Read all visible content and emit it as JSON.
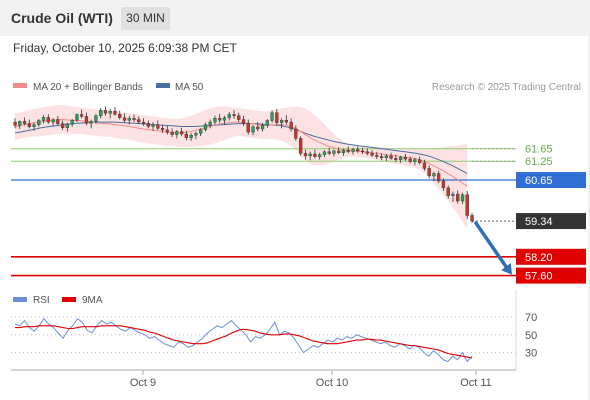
{
  "header": {
    "title": "Crude Oil (WTI)",
    "timeframe": "30 MIN"
  },
  "timestamp": "Friday, October 10, 2025 6:09:38 PM CET",
  "legend": {
    "ma20_label": "MA 20 + Bollinger Bands",
    "ma50_label": "MA 50",
    "copyright": "Research © 2025 Trading Central",
    "rsi_label": "RSI",
    "ma9_label": "9MA"
  },
  "colors": {
    "bull": "#26a65b",
    "bear": "#c0392b",
    "ma20": "#f08a8a",
    "ma50": "#4a6fa5",
    "bollinger": "#fbd5d5",
    "level_blue": "#2f6fd6",
    "level_red": "#e00000",
    "level_green": "#8fcf6f",
    "current": "#333333",
    "arrow": "#2e6fb5",
    "rsi": "#6b8fd6",
    "rsi_ma": "#e00000"
  },
  "chart_data": [
    {
      "type": "candlestick",
      "title": "Crude Oil (WTI)",
      "timeframe": "30 MIN",
      "ylim": [
        57.3,
        63.3
      ],
      "x_tick_labels": [
        "Oct 9",
        "Oct 10",
        "Oct 11"
      ],
      "levels": [
        {
          "value": 61.65,
          "label": "61.65",
          "style": "green-line"
        },
        {
          "value": 61.25,
          "label": "61.25",
          "style": "green-line"
        },
        {
          "value": 60.65,
          "label": "60.65",
          "style": "blue-badge"
        },
        {
          "value": 59.34,
          "label": "59.34",
          "style": "current-price-badge"
        },
        {
          "value": 58.2,
          "label": "58.20",
          "style": "red-badge"
        },
        {
          "value": 57.6,
          "label": "57.60",
          "style": "red-badge"
        }
      ],
      "candles": [
        [
          62.5,
          62.62,
          62.3,
          62.4
        ],
        [
          62.4,
          62.55,
          62.28,
          62.52
        ],
        [
          62.52,
          62.65,
          62.4,
          62.45
        ],
        [
          62.45,
          62.58,
          62.3,
          62.35
        ],
        [
          62.35,
          62.48,
          62.22,
          62.42
        ],
        [
          62.42,
          62.6,
          62.35,
          62.55
        ],
        [
          62.55,
          62.72,
          62.45,
          62.65
        ],
        [
          62.65,
          62.75,
          62.45,
          62.5
        ],
        [
          62.5,
          62.62,
          62.38,
          62.58
        ],
        [
          62.58,
          62.7,
          62.4,
          62.45
        ],
        [
          62.45,
          62.55,
          62.25,
          62.32
        ],
        [
          62.32,
          62.48,
          62.2,
          62.44
        ],
        [
          62.44,
          62.6,
          62.35,
          62.56
        ],
        [
          62.56,
          62.78,
          62.5,
          62.74
        ],
        [
          62.74,
          62.9,
          62.62,
          62.68
        ],
        [
          62.68,
          62.8,
          62.4,
          62.46
        ],
        [
          62.46,
          62.58,
          62.3,
          62.52
        ],
        [
          62.52,
          62.75,
          62.45,
          62.7
        ],
        [
          62.7,
          62.95,
          62.62,
          62.88
        ],
        [
          62.88,
          63.0,
          62.7,
          62.78
        ],
        [
          62.78,
          62.92,
          62.62,
          62.85
        ],
        [
          62.85,
          62.98,
          62.7,
          62.75
        ],
        [
          62.75,
          62.86,
          62.58,
          62.64
        ],
        [
          62.64,
          62.78,
          62.48,
          62.56
        ],
        [
          62.56,
          62.7,
          62.42,
          62.62
        ],
        [
          62.62,
          62.74,
          62.5,
          62.58
        ],
        [
          62.58,
          62.68,
          62.44,
          62.5
        ],
        [
          62.5,
          62.62,
          62.38,
          62.46
        ],
        [
          62.46,
          62.55,
          62.3,
          62.36
        ],
        [
          62.36,
          62.5,
          62.22,
          62.42
        ],
        [
          62.42,
          62.55,
          62.25,
          62.3
        ],
        [
          62.3,
          62.42,
          62.15,
          62.25
        ],
        [
          62.25,
          62.38,
          62.1,
          62.18
        ],
        [
          62.18,
          62.3,
          62.02,
          62.1
        ],
        [
          62.1,
          62.25,
          61.98,
          62.2
        ],
        [
          62.2,
          62.32,
          62.05,
          62.12
        ],
        [
          62.12,
          62.22,
          61.92,
          62.0
        ],
        [
          62.0,
          62.15,
          61.9,
          62.08
        ],
        [
          62.08,
          62.2,
          61.95,
          62.14
        ],
        [
          62.14,
          62.3,
          62.05,
          62.26
        ],
        [
          62.26,
          62.48,
          62.2,
          62.42
        ],
        [
          62.42,
          62.58,
          62.3,
          62.5
        ],
        [
          62.5,
          62.7,
          62.4,
          62.62
        ],
        [
          62.62,
          62.76,
          62.48,
          62.56
        ],
        [
          62.56,
          62.7,
          62.42,
          62.64
        ],
        [
          62.64,
          62.82,
          62.55,
          62.74
        ],
        [
          62.74,
          62.88,
          62.6,
          62.7
        ],
        [
          62.7,
          62.8,
          62.5,
          62.58
        ],
        [
          62.58,
          62.7,
          62.38,
          62.46
        ],
        [
          62.46,
          62.58,
          62.1,
          62.18
        ],
        [
          62.18,
          62.4,
          62.08,
          62.35
        ],
        [
          62.35,
          62.5,
          62.2,
          62.28
        ],
        [
          62.28,
          62.48,
          62.2,
          62.4
        ],
        [
          62.4,
          62.6,
          62.32,
          62.55
        ],
        [
          62.55,
          62.88,
          62.48,
          62.8
        ],
        [
          62.8,
          62.92,
          62.4,
          62.48
        ],
        [
          62.48,
          62.62,
          62.3,
          62.56
        ],
        [
          62.56,
          62.72,
          62.42,
          62.5
        ],
        [
          62.5,
          62.62,
          62.2,
          62.28
        ],
        [
          62.28,
          62.4,
          61.9,
          61.98
        ],
        [
          61.98,
          62.05,
          61.42,
          61.5
        ],
        [
          61.5,
          61.62,
          61.3,
          61.42
        ],
        [
          61.42,
          61.56,
          61.28,
          61.48
        ],
        [
          61.48,
          61.62,
          61.35,
          61.4
        ],
        [
          61.4,
          61.52,
          61.3,
          61.46
        ],
        [
          61.46,
          61.6,
          61.38,
          61.55
        ],
        [
          61.55,
          61.68,
          61.45,
          61.5
        ],
        [
          61.5,
          61.62,
          61.4,
          61.58
        ],
        [
          61.58,
          61.7,
          61.48,
          61.52
        ],
        [
          61.52,
          61.65,
          61.42,
          61.6
        ],
        [
          61.6,
          61.72,
          61.5,
          61.56
        ],
        [
          61.56,
          61.68,
          61.46,
          61.62
        ],
        [
          61.62,
          61.72,
          61.52,
          61.58
        ],
        [
          61.58,
          61.68,
          61.48,
          61.55
        ],
        [
          61.55,
          61.66,
          61.44,
          61.5
        ],
        [
          61.5,
          61.6,
          61.38,
          61.44
        ],
        [
          61.44,
          61.55,
          61.32,
          61.4
        ],
        [
          61.4,
          61.5,
          61.28,
          61.36
        ],
        [
          61.36,
          61.48,
          61.25,
          61.42
        ],
        [
          61.42,
          61.52,
          61.3,
          61.34
        ],
        [
          61.34,
          61.45,
          61.22,
          61.3
        ],
        [
          61.3,
          61.42,
          61.2,
          61.38
        ],
        [
          61.38,
          61.48,
          61.26,
          61.32
        ],
        [
          61.32,
          61.4,
          61.18,
          61.24
        ],
        [
          61.24,
          61.36,
          61.12,
          61.3
        ],
        [
          61.3,
          61.4,
          61.15,
          61.2
        ],
        [
          61.2,
          61.3,
          60.95,
          61.02
        ],
        [
          61.02,
          61.12,
          60.7,
          60.78
        ],
        [
          60.78,
          60.92,
          60.62,
          60.86
        ],
        [
          60.86,
          60.95,
          60.55,
          60.62
        ],
        [
          60.62,
          60.7,
          60.3,
          60.4
        ],
        [
          60.4,
          60.48,
          60.05,
          60.15
        ],
        [
          60.15,
          60.28,
          59.95,
          60.2
        ],
        [
          60.2,
          60.32,
          59.9,
          59.98
        ],
        [
          59.98,
          60.25,
          59.88,
          60.18
        ],
        [
          60.18,
          60.3,
          59.4,
          59.52
        ],
        [
          59.52,
          59.6,
          59.28,
          59.34
        ]
      ],
      "ma20": [
        62.35,
        62.38,
        62.42,
        62.45,
        62.48,
        62.5,
        62.52,
        62.54,
        62.56,
        62.58,
        62.58,
        62.57,
        62.56,
        62.55,
        62.54,
        62.52,
        62.5,
        62.48,
        62.46,
        62.45,
        62.44,
        62.42,
        62.4,
        62.38,
        62.36,
        62.33,
        62.3,
        62.28,
        62.26,
        62.24,
        62.22,
        62.2,
        62.18,
        62.17,
        62.16,
        62.16,
        62.18,
        62.2,
        62.24,
        62.28,
        62.32,
        62.36,
        62.4,
        62.44,
        62.46,
        62.48,
        62.5,
        62.5,
        62.48,
        62.46,
        62.44,
        62.42,
        62.4,
        62.4,
        62.41,
        62.42,
        62.42,
        62.4,
        62.36,
        62.3,
        62.2,
        62.1,
        62.0,
        61.92,
        61.85,
        61.78,
        61.72,
        61.68,
        61.64,
        61.62,
        61.6,
        61.58,
        61.56,
        61.55,
        61.54,
        61.52,
        61.5,
        61.48,
        61.46,
        61.44,
        61.42,
        61.4,
        61.38,
        61.36,
        61.34,
        61.3,
        61.25,
        61.18,
        61.1,
        61.02,
        60.94,
        60.85,
        60.76,
        60.66,
        60.55,
        60.45
      ],
      "bb_upper": [
        62.78,
        62.8,
        62.84,
        62.88,
        62.92,
        62.95,
        62.98,
        63.0,
        63.02,
        63.04,
        63.04,
        63.02,
        63.0,
        62.98,
        62.96,
        62.94,
        62.92,
        62.9,
        62.88,
        62.86,
        62.85,
        62.84,
        62.82,
        62.8,
        62.78,
        62.76,
        62.74,
        62.72,
        62.7,
        62.68,
        62.66,
        62.64,
        62.62,
        62.6,
        62.6,
        62.62,
        62.66,
        62.7,
        62.76,
        62.82,
        62.88,
        62.94,
        62.98,
        63.0,
        63.0,
        62.98,
        62.96,
        62.94,
        62.92,
        62.9,
        62.88,
        62.86,
        62.84,
        62.84,
        62.86,
        62.9,
        62.94,
        62.96,
        62.98,
        63.0,
        62.98,
        62.92,
        62.84,
        62.72,
        62.58,
        62.42,
        62.26,
        62.12,
        61.98,
        61.88,
        61.8,
        61.76,
        61.74,
        61.73,
        61.72,
        61.72,
        61.71,
        61.7,
        61.69,
        61.68,
        61.67,
        61.66,
        61.65,
        61.64,
        61.63,
        61.62,
        61.62,
        61.63,
        61.65,
        61.68,
        61.7,
        61.72,
        61.74,
        61.76,
        61.78,
        61.8
      ],
      "bb_lower": [
        61.92,
        61.96,
        62.0,
        62.02,
        62.04,
        62.05,
        62.06,
        62.08,
        62.1,
        62.12,
        62.12,
        62.12,
        62.12,
        62.12,
        62.12,
        62.1,
        62.08,
        62.06,
        62.04,
        62.04,
        62.03,
        62.0,
        61.98,
        61.96,
        61.94,
        61.9,
        61.86,
        61.84,
        61.82,
        61.8,
        61.78,
        61.76,
        61.74,
        61.74,
        61.72,
        61.7,
        61.7,
        61.7,
        61.72,
        61.74,
        61.76,
        61.78,
        61.82,
        61.88,
        61.92,
        61.98,
        62.04,
        62.06,
        62.04,
        62.02,
        62.0,
        61.98,
        61.96,
        61.96,
        61.96,
        61.94,
        61.9,
        61.84,
        61.74,
        61.6,
        61.42,
        61.28,
        61.16,
        61.12,
        61.12,
        61.14,
        61.18,
        61.24,
        61.3,
        61.36,
        61.4,
        61.4,
        61.38,
        61.37,
        61.36,
        61.32,
        61.29,
        61.26,
        61.23,
        61.2,
        61.17,
        61.14,
        61.11,
        61.08,
        61.05,
        60.98,
        60.88,
        60.73,
        60.55,
        60.36,
        60.18,
        59.98,
        59.78,
        59.56,
        59.32,
        59.1
      ],
      "ma50": [
        62.15,
        62.18,
        62.21,
        62.24,
        62.27,
        62.3,
        62.33,
        62.35,
        62.37,
        62.39,
        62.41,
        62.43,
        62.44,
        62.46,
        62.47,
        62.48,
        62.49,
        62.5,
        62.5,
        62.5,
        62.5,
        62.5,
        62.49,
        62.48,
        62.47,
        62.46,
        62.45,
        62.44,
        62.43,
        62.42,
        62.41,
        62.4,
        62.39,
        62.38,
        62.37,
        62.36,
        62.36,
        62.36,
        62.36,
        62.37,
        62.38,
        62.39,
        62.4,
        62.41,
        62.42,
        62.43,
        62.44,
        62.45,
        62.45,
        62.45,
        62.45,
        62.44,
        62.43,
        62.42,
        62.41,
        62.4,
        62.38,
        62.35,
        62.31,
        62.26,
        62.2,
        62.14,
        62.09,
        62.04,
        62.0,
        61.96,
        61.92,
        61.88,
        61.85,
        61.82,
        61.79,
        61.77,
        61.75,
        61.73,
        61.71,
        61.69,
        61.67,
        61.65,
        61.63,
        61.61,
        61.59,
        61.57,
        61.55,
        61.53,
        61.51,
        61.48,
        61.45,
        61.41,
        61.36,
        61.3,
        61.24,
        61.17,
        61.1,
        61.02,
        60.94,
        60.86
      ]
    },
    {
      "type": "line",
      "title": "RSI",
      "ylim": [
        15,
        80
      ],
      "y_tick_labels": [
        "70",
        "50",
        "30"
      ],
      "x_tick_labels": [
        "Oct 9",
        "Oct 10",
        "Oct 11"
      ],
      "series": [
        {
          "name": "RSI",
          "values": [
            62,
            60,
            66,
            58,
            54,
            60,
            68,
            62,
            58,
            52,
            46,
            55,
            60,
            68,
            64,
            55,
            52,
            60,
            66,
            62,
            64,
            60,
            56,
            54,
            58,
            55,
            52,
            50,
            46,
            48,
            44,
            40,
            38,
            36,
            42,
            40,
            36,
            38,
            42,
            46,
            52,
            56,
            60,
            58,
            62,
            66,
            60,
            55,
            50,
            42,
            48,
            46,
            50,
            56,
            64,
            50,
            54,
            52,
            46,
            38,
            30,
            34,
            38,
            36,
            40,
            44,
            42,
            46,
            44,
            48,
            46,
            50,
            48,
            46,
            44,
            42,
            40,
            42,
            38,
            36,
            40,
            38,
            34,
            38,
            36,
            30,
            26,
            32,
            28,
            22,
            20,
            26,
            22,
            30,
            20,
            26
          ]
        },
        {
          "name": "9MA",
          "values": [
            58,
            58,
            59,
            59,
            59,
            60,
            60,
            60,
            60,
            59,
            58,
            57,
            57,
            58,
            59,
            59,
            59,
            59,
            60,
            60,
            60,
            60,
            60,
            59,
            58,
            57,
            56,
            55,
            53,
            52,
            50,
            48,
            46,
            44,
            43,
            42,
            41,
            40,
            40,
            40,
            41,
            43,
            45,
            47,
            49,
            52,
            54,
            56,
            56,
            55,
            54,
            52,
            51,
            50,
            50,
            50,
            51,
            51,
            50,
            49,
            47,
            45,
            43,
            42,
            41,
            40,
            40,
            40,
            41,
            42,
            43,
            44,
            44,
            45,
            45,
            44,
            44,
            43,
            42,
            41,
            40,
            39,
            38,
            38,
            37,
            36,
            35,
            34,
            33,
            31,
            29,
            28,
            27,
            26,
            25,
            24
          ]
        }
      ]
    }
  ]
}
